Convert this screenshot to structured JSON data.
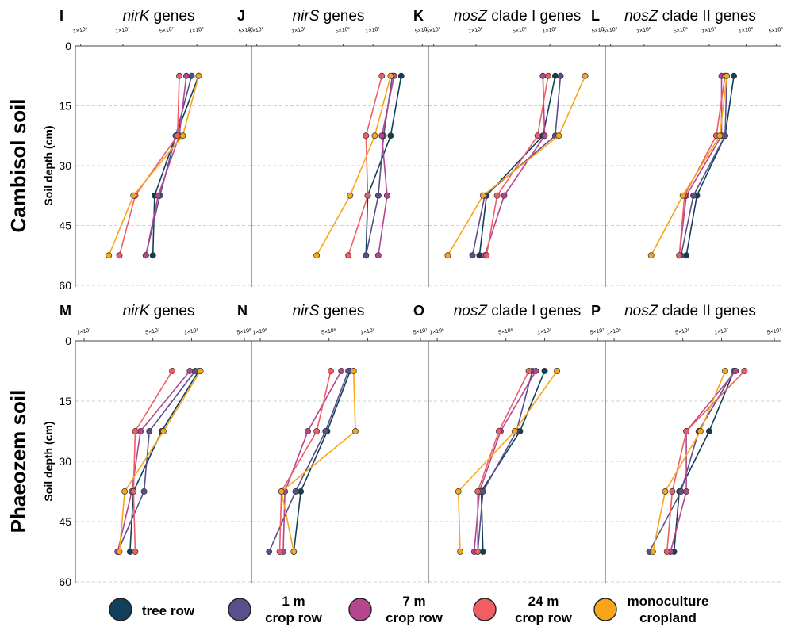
{
  "row_labels": [
    "Cambisol soil",
    "Phaeozem soil"
  ],
  "y_axis_label": "Soil depth (cm)",
  "legend": [
    {
      "key": "tree_row",
      "lines": [
        "tree row"
      ],
      "color": "#123f5a"
    },
    {
      "key": "crop_1m",
      "lines": [
        "1 m",
        "crop row"
      ],
      "color": "#5b4e8c"
    },
    {
      "key": "crop_7m",
      "lines": [
        "7 m",
        "crop row"
      ],
      "color": "#b5458e"
    },
    {
      "key": "crop_24m",
      "lines": [
        "24 m",
        "crop row"
      ],
      "color": "#f05d64"
    },
    {
      "key": "mono",
      "lines": [
        "monoculture",
        "cropland"
      ],
      "color": "#f9a51a"
    }
  ],
  "chart_data": [
    {
      "type": "line",
      "panel": "I",
      "title_gene": "nirK",
      "title_rest": " genes",
      "xticks": [
        "1×10⁶",
        "1×10⁷",
        "5×10⁷",
        "1×10⁸",
        "5×10⁸"
      ],
      "yticks": [
        "0",
        "15",
        "30",
        "45",
        "60"
      ],
      "ylim": [
        0,
        60
      ],
      "depth": [
        7.5,
        22.5,
        37.5,
        52.5
      ],
      "series": [
        {
          "key": "tree_row",
          "values": [
            0.7,
            0.57,
            0.45,
            0.44
          ]
        },
        {
          "key": "crop_1m",
          "values": [
            0.66,
            0.57,
            0.48,
            0.4
          ]
        },
        {
          "key": "crop_7m",
          "values": [
            0.63,
            0.59,
            0.47,
            0.4
          ]
        },
        {
          "key": "crop_24m",
          "values": [
            0.59,
            0.58,
            0.34,
            0.25
          ]
        },
        {
          "key": "mono",
          "values": [
            0.7,
            0.61,
            0.33,
            0.19
          ]
        }
      ]
    },
    {
      "type": "line",
      "panel": "J",
      "title_gene": "nirS",
      "title_rest": " genes",
      "xticks": [
        "5×10⁸",
        "1×10⁶",
        "5×10⁶",
        "1×10⁷",
        "5×10⁷"
      ],
      "yticks": [
        "0",
        "15",
        "30",
        "45",
        "60"
      ],
      "ylim": [
        0,
        60
      ],
      "depth": [
        7.5,
        22.5,
        37.5,
        52.5
      ],
      "series": [
        {
          "key": "tree_row",
          "values": [
            0.85,
            0.79,
            0.66,
            0.65
          ]
        },
        {
          "key": "crop_1m",
          "values": [
            0.8,
            0.75,
            0.72,
            0.65
          ]
        },
        {
          "key": "crop_7m",
          "values": [
            0.81,
            0.74,
            0.77,
            0.72
          ]
        },
        {
          "key": "crop_24m",
          "values": [
            0.74,
            0.65,
            0.66,
            0.55
          ]
        },
        {
          "key": "mono",
          "values": [
            0.79,
            0.7,
            0.56,
            0.37
          ]
        }
      ]
    },
    {
      "type": "line",
      "panel": "K",
      "title_gene": "nosZ",
      "title_rest": " clade I genes",
      "xticks": [
        "5×10⁸",
        "1×10⁶",
        "5×10⁶",
        "1×10⁷",
        "5×10⁷"
      ],
      "yticks": [
        "0",
        "15",
        "30",
        "45",
        "60"
      ],
      "ylim": [
        0,
        60
      ],
      "depth": [
        7.5,
        22.5,
        37.5,
        52.5
      ],
      "series": [
        {
          "key": "tree_row",
          "values": [
            0.72,
            0.65,
            0.33,
            0.29
          ]
        },
        {
          "key": "crop_1m",
          "values": [
            0.75,
            0.72,
            0.32,
            0.25
          ]
        },
        {
          "key": "crop_7m",
          "values": [
            0.65,
            0.66,
            0.43,
            0.32
          ]
        },
        {
          "key": "crop_24m",
          "values": [
            0.68,
            0.62,
            0.39,
            0.33
          ]
        },
        {
          "key": "mono",
          "values": [
            0.89,
            0.74,
            0.31,
            0.11
          ]
        }
      ]
    },
    {
      "type": "line",
      "panel": "L",
      "title_gene": "nosZ",
      "title_rest": " clade II genes",
      "xticks": [
        "5×10⁸",
        "1×10⁶",
        "5×10⁶",
        "1×10⁷",
        "1×10⁸",
        "5×10⁸"
      ],
      "yticks": [
        "0",
        "15",
        "30",
        "45",
        "60"
      ],
      "ylim": [
        0,
        60
      ],
      "depth": [
        7.5,
        22.5,
        37.5,
        52.5
      ],
      "series": [
        {
          "key": "tree_row",
          "values": [
            0.73,
            0.68,
            0.52,
            0.46
          ]
        },
        {
          "key": "crop_1m",
          "values": [
            0.69,
            0.68,
            0.5,
            0.43
          ]
        },
        {
          "key": "crop_7m",
          "values": [
            0.66,
            0.66,
            0.46,
            0.42
          ]
        },
        {
          "key": "crop_24m",
          "values": [
            0.68,
            0.63,
            0.45,
            0.42
          ]
        },
        {
          "key": "mono",
          "values": [
            0.69,
            0.65,
            0.44,
            0.26
          ]
        }
      ]
    },
    {
      "type": "line",
      "panel": "M",
      "title_gene": "nirK",
      "title_rest": " genes",
      "xticks": [
        "1×10⁷",
        "5×10⁷",
        "1×10⁸",
        "5×10⁸"
      ],
      "yticks": [
        "0",
        "15",
        "30",
        "45",
        "60"
      ],
      "ylim": [
        0,
        60
      ],
      "depth": [
        7.5,
        22.5,
        37.5,
        52.5
      ],
      "series": [
        {
          "key": "tree_row",
          "values": [
            0.7,
            0.49,
            0.33,
            0.31
          ]
        },
        {
          "key": "crop_1m",
          "values": [
            0.68,
            0.42,
            0.39,
            0.24
          ]
        },
        {
          "key": "crop_7m",
          "values": [
            0.65,
            0.37,
            0.32,
            0.24
          ]
        },
        {
          "key": "crop_24m",
          "values": [
            0.55,
            0.34,
            0.33,
            0.34
          ]
        },
        {
          "key": "mono",
          "values": [
            0.71,
            0.5,
            0.28,
            0.25
          ]
        }
      ]
    },
    {
      "type": "line",
      "panel": "N",
      "title_gene": "nirS",
      "title_rest": " genes",
      "xticks": [
        "1×10⁶",
        "5×10⁶",
        "1×10⁷",
        "5×10⁷"
      ],
      "yticks": [
        "0",
        "15",
        "30",
        "45",
        "60"
      ],
      "ylim": [
        0,
        60
      ],
      "depth": [
        7.5,
        22.5,
        37.5,
        52.5
      ],
      "series": [
        {
          "key": "tree_row",
          "values": [
            0.56,
            0.43,
            0.28,
            0.24
          ]
        },
        {
          "key": "crop_1m",
          "values": [
            0.55,
            0.42,
            0.25,
            0.1
          ]
        },
        {
          "key": "crop_7m",
          "values": [
            0.51,
            0.32,
            0.19,
            0.18
          ]
        },
        {
          "key": "crop_24m",
          "values": [
            0.45,
            0.37,
            0.17,
            0.16
          ]
        },
        {
          "key": "mono",
          "values": [
            0.58,
            0.59,
            0.17,
            0.24
          ]
        }
      ]
    },
    {
      "type": "line",
      "panel": "O",
      "title_gene": "nosZ",
      "title_rest": " clade I genes",
      "xticks": [
        "1×10⁶",
        "5×10⁶",
        "1×10⁷",
        "5×10⁷"
      ],
      "yticks": [
        "0",
        "15",
        "30",
        "45",
        "60"
      ],
      "ylim": [
        0,
        60
      ],
      "depth": [
        7.5,
        22.5,
        37.5,
        52.5
      ],
      "series": [
        {
          "key": "tree_row",
          "values": [
            0.66,
            0.52,
            0.3,
            0.31
          ]
        },
        {
          "key": "crop_1m",
          "values": [
            0.59,
            0.5,
            0.31,
            0.28
          ]
        },
        {
          "key": "crop_7m",
          "values": [
            0.61,
            0.41,
            0.29,
            0.26
          ]
        },
        {
          "key": "crop_24m",
          "values": [
            0.57,
            0.4,
            0.28,
            0.28
          ]
        },
        {
          "key": "mono",
          "values": [
            0.73,
            0.49,
            0.17,
            0.18
          ]
        }
      ]
    },
    {
      "type": "line",
      "panel": "P",
      "title_gene": "nosZ",
      "title_rest": " clade II genes",
      "xticks": [
        "1×10⁶",
        "5×10⁶",
        "1×10⁷",
        "5×10⁷"
      ],
      "yticks": [
        "0",
        "15",
        "30",
        "45",
        "60"
      ],
      "ylim": [
        0,
        60
      ],
      "depth": [
        7.5,
        22.5,
        37.5,
        52.5
      ],
      "series": [
        {
          "key": "tree_row",
          "values": [
            0.73,
            0.59,
            0.42,
            0.39
          ]
        },
        {
          "key": "crop_1m",
          "values": [
            0.73,
            0.53,
            0.43,
            0.25
          ]
        },
        {
          "key": "crop_7m",
          "values": [
            0.74,
            0.46,
            0.46,
            0.37
          ]
        },
        {
          "key": "crop_24m",
          "values": [
            0.79,
            0.46,
            0.38,
            0.35
          ]
        },
        {
          "key": "mono",
          "values": [
            0.68,
            0.54,
            0.34,
            0.27
          ]
        }
      ]
    }
  ]
}
